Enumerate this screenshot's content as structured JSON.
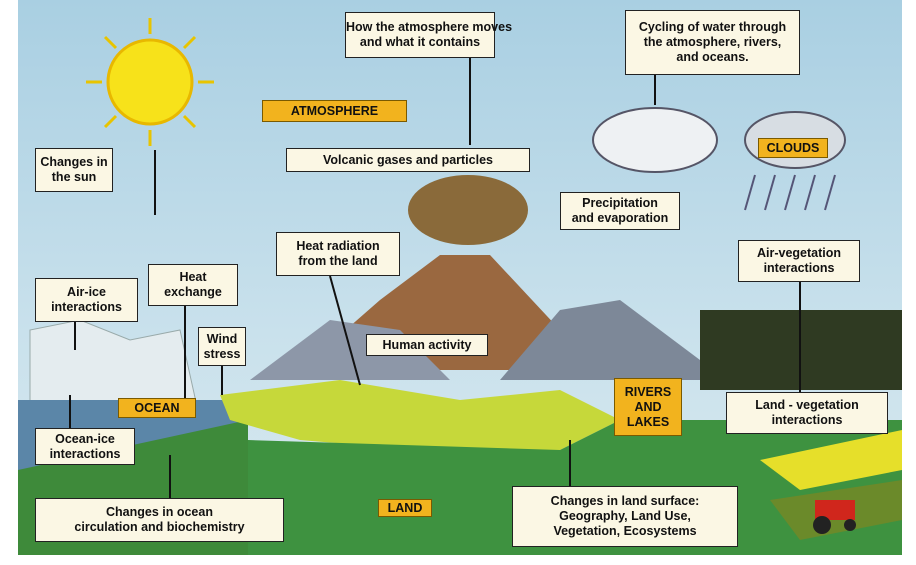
{
  "labels": [
    {
      "lines": [
        "How the atmosphere moves",
        "and what it contains"
      ]
    },
    {
      "lines": [
        "Cycling of water through",
        "the atmosphere, rivers,",
        "and oceans."
      ]
    },
    {
      "lines": [
        "ATMOSPHERE"
      ]
    },
    {
      "lines": [
        "Changes in",
        "the sun"
      ]
    },
    {
      "lines": [
        "Volcanic gases and particles"
      ]
    },
    {
      "lines": [
        "CLOUDS"
      ]
    },
    {
      "lines": [
        "Precipitation",
        "and evaporation"
      ]
    },
    {
      "lines": [
        "Heat radiation",
        "from the land"
      ]
    },
    {
      "lines": [
        "Air-ice",
        "interactions"
      ]
    },
    {
      "lines": [
        "Heat",
        "exchange"
      ]
    },
    {
      "lines": [
        "Wind",
        "stress"
      ]
    },
    {
      "lines": [
        "Human activity"
      ]
    },
    {
      "lines": [
        "Air-vegetation",
        "interactions"
      ]
    },
    {
      "lines": [
        "OCEAN"
      ]
    },
    {
      "lines": [
        "RIVERS",
        "AND",
        "LAKES"
      ]
    },
    {
      "lines": [
        "Land - vegetation",
        "interactions"
      ]
    },
    {
      "lines": [
        "Ocean-ice",
        "interactions"
      ]
    },
    {
      "lines": [
        "Changes in ocean",
        "circulation and biochemistry"
      ]
    },
    {
      "lines": [
        "LAND"
      ]
    },
    {
      "lines": [
        "Changes in land surface:",
        "Geography, Land Use,",
        "Vegetation, Ecosystems"
      ]
    }
  ]
}
